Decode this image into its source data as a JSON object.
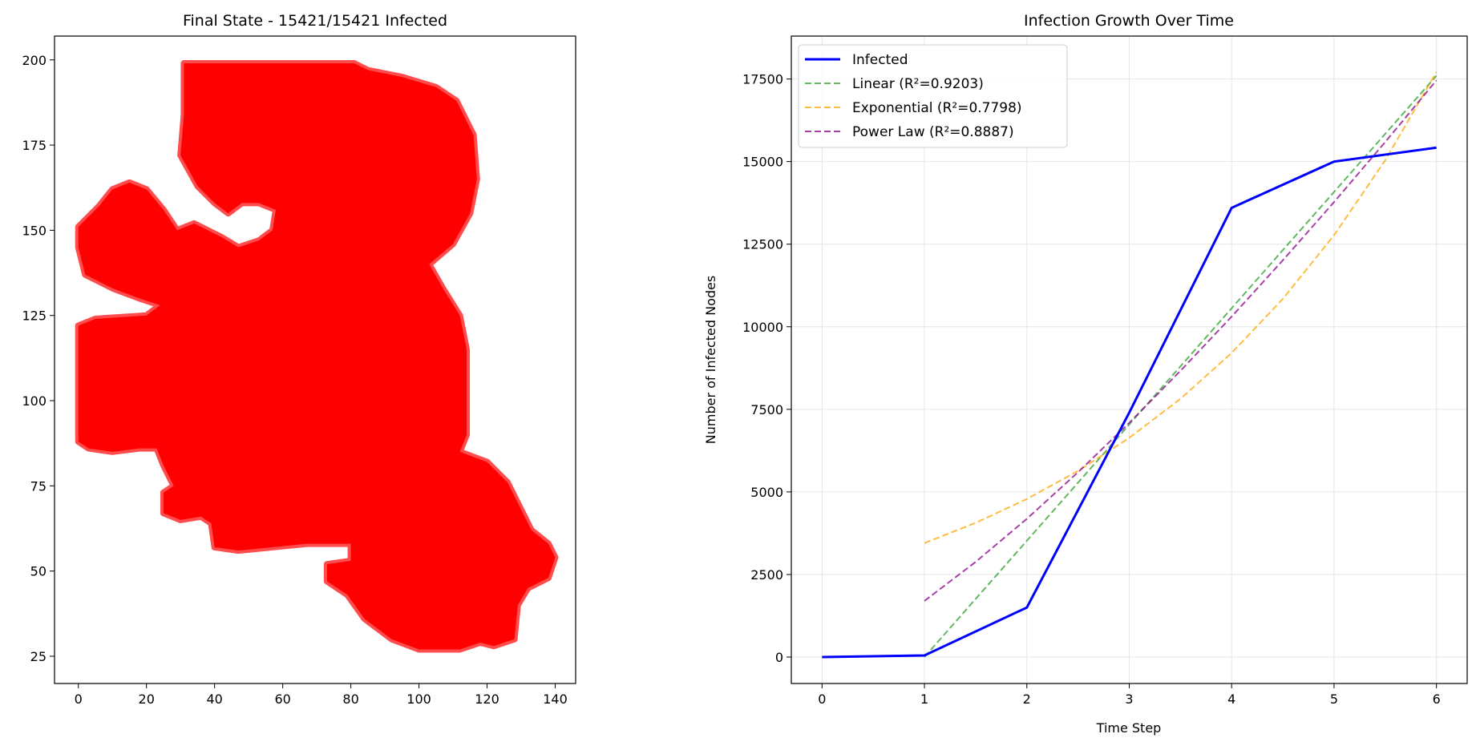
{
  "chart_data": [
    {
      "type": "scatter",
      "title": "Final State - 15421/15421 Infected",
      "xlabel": "",
      "ylabel": "",
      "xlim": [
        -7,
        146
      ],
      "ylim": [
        17,
        207
      ],
      "xticks": [
        0,
        20,
        40,
        60,
        80,
        100,
        120,
        140
      ],
      "yticks": [
        25,
        50,
        75,
        100,
        125,
        150,
        175,
        200
      ],
      "grid": false,
      "point_color": "#ff0000",
      "infected_count": 15421,
      "total_count": 15421,
      "region_outline": [
        [
          31,
          199
        ],
        [
          81,
          199
        ],
        [
          85,
          197
        ],
        [
          95,
          195
        ],
        [
          105,
          192
        ],
        [
          111,
          188
        ],
        [
          116,
          178
        ],
        [
          117,
          165
        ],
        [
          115,
          155
        ],
        [
          110,
          146
        ],
        [
          103,
          140
        ],
        [
          107,
          133
        ],
        [
          112,
          125
        ],
        [
          114,
          115
        ],
        [
          114,
          90
        ],
        [
          112,
          85
        ],
        [
          120,
          82
        ],
        [
          126,
          76
        ],
        [
          130,
          68
        ],
        [
          133,
          62
        ],
        [
          138,
          58
        ],
        [
          140,
          54
        ],
        [
          138,
          48
        ],
        [
          132,
          45
        ],
        [
          129,
          40
        ],
        [
          128,
          30
        ],
        [
          122,
          28
        ],
        [
          118,
          29
        ],
        [
          112,
          27
        ],
        [
          100,
          27
        ],
        [
          92,
          30
        ],
        [
          84,
          36
        ],
        [
          79,
          43
        ],
        [
          73,
          47
        ],
        [
          73,
          52
        ],
        [
          80,
          53
        ],
        [
          80,
          58
        ],
        [
          67,
          58
        ],
        [
          57,
          57
        ],
        [
          47,
          56
        ],
        [
          40,
          57
        ],
        [
          39,
          64
        ],
        [
          36,
          66
        ],
        [
          30,
          65
        ],
        [
          25,
          67
        ],
        [
          25,
          73
        ],
        [
          28,
          75
        ],
        [
          25,
          81
        ],
        [
          23,
          86
        ],
        [
          18,
          86
        ],
        [
          10,
          85
        ],
        [
          3,
          86
        ],
        [
          0,
          88
        ],
        [
          0,
          122
        ],
        [
          5,
          124
        ],
        [
          20,
          125
        ],
        [
          24,
          128
        ],
        [
          18,
          130
        ],
        [
          10,
          133
        ],
        [
          2,
          137
        ],
        [
          0,
          145
        ],
        [
          0,
          151
        ],
        [
          6,
          157
        ],
        [
          10,
          162
        ],
        [
          15,
          164
        ],
        [
          20,
          162
        ],
        [
          25,
          156
        ],
        [
          29,
          150
        ],
        [
          34,
          152
        ],
        [
          38,
          150
        ],
        [
          42,
          148
        ],
        [
          47,
          145
        ],
        [
          53,
          147
        ],
        [
          57,
          150
        ],
        [
          58,
          156
        ],
        [
          53,
          158
        ],
        [
          48,
          158
        ],
        [
          44,
          155
        ],
        [
          40,
          158
        ],
        [
          35,
          163
        ],
        [
          30,
          172
        ],
        [
          31,
          184
        ],
        [
          31,
          199
        ]
      ],
      "region_hole": [
        [
          48,
          152
        ],
        [
          51,
          155
        ],
        [
          54,
          152
        ],
        [
          53,
          148
        ],
        [
          50,
          149
        ]
      ]
    },
    {
      "type": "line",
      "title": "Infection Growth Over Time",
      "xlabel": "Time Step",
      "ylabel": "Number of Infected Nodes",
      "xlim": [
        -0.3,
        6.3
      ],
      "ylim": [
        -800,
        18800
      ],
      "xticks": [
        0,
        1,
        2,
        3,
        4,
        5,
        6
      ],
      "yticks": [
        0,
        2500,
        5000,
        7500,
        10000,
        12500,
        15000,
        17500
      ],
      "grid": true,
      "legend": "top-left",
      "series": [
        {
          "name": "Infected",
          "color": "#0000ff",
          "style": "solid",
          "x": [
            0,
            1,
            2,
            3,
            4,
            5,
            6
          ],
          "y": [
            0,
            50,
            1500,
            7400,
            13600,
            15000,
            15421
          ]
        },
        {
          "name": "Linear (R²=0.9203)",
          "color": "#2ca02c",
          "style": "dashed",
          "x": [
            1,
            6
          ],
          "y": [
            0,
            17600
          ]
        },
        {
          "name": "Exponential (R²=0.7798)",
          "color": "#ffa500",
          "style": "dashed",
          "x": [
            1,
            1.5,
            2,
            2.5,
            3,
            3.5,
            4,
            4.5,
            5,
            5.5,
            6
          ],
          "y": [
            3450,
            4063,
            4785,
            5636,
            6637,
            7817,
            9207,
            10843,
            12770,
            15040,
            17713
          ]
        },
        {
          "name": "Power Law (R²=0.8887)",
          "color": "#8b008b",
          "style": "dashed",
          "x": [
            1,
            1.5,
            2,
            2.5,
            3,
            3.5,
            4,
            4.5,
            5,
            5.5,
            6
          ],
          "y": [
            1700,
            2880,
            4186,
            5595,
            7091,
            8665,
            10307,
            12012,
            13775,
            15593,
            17460
          ]
        }
      ]
    }
  ]
}
